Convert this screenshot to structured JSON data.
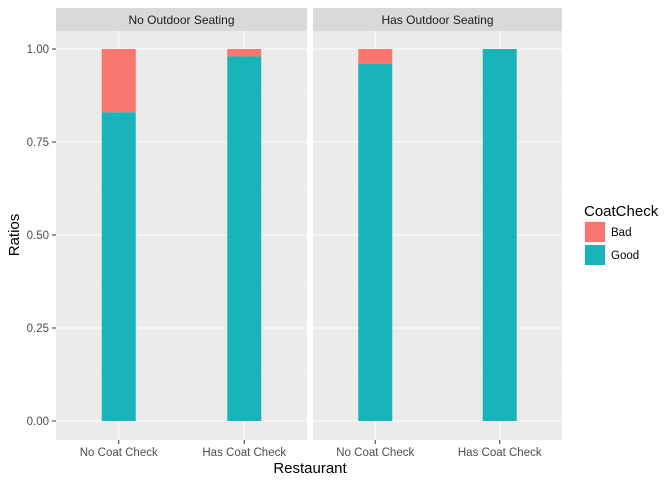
{
  "chart_data": {
    "type": "bar",
    "stacked": true,
    "xlabel": "Restaurant",
    "ylabel": "Ratios",
    "ylim": [
      0,
      1
    ],
    "yticks": [
      "0.00",
      "0.25",
      "0.50",
      "0.75",
      "1.00"
    ],
    "categories": [
      "No Coat Check",
      "Has Coat Check"
    ],
    "legend": {
      "title": "CoatCheck",
      "position": "right",
      "entries": [
        {
          "name": "Bad",
          "color": "#F8766D"
        },
        {
          "name": "Good",
          "color": "#19B4B9"
        }
      ]
    },
    "grid": true,
    "panels": [
      {
        "label": "No Outdoor Seating",
        "series": [
          {
            "name": "Good",
            "values": [
              0.83,
              0.98
            ]
          },
          {
            "name": "Bad",
            "values": [
              0.17,
              0.02
            ]
          }
        ]
      },
      {
        "label": "Has Outdoor Seating",
        "series": [
          {
            "name": "Good",
            "values": [
              0.96,
              1.0
            ]
          },
          {
            "name": "Bad",
            "values": [
              0.04,
              0.0
            ]
          }
        ]
      }
    ]
  }
}
